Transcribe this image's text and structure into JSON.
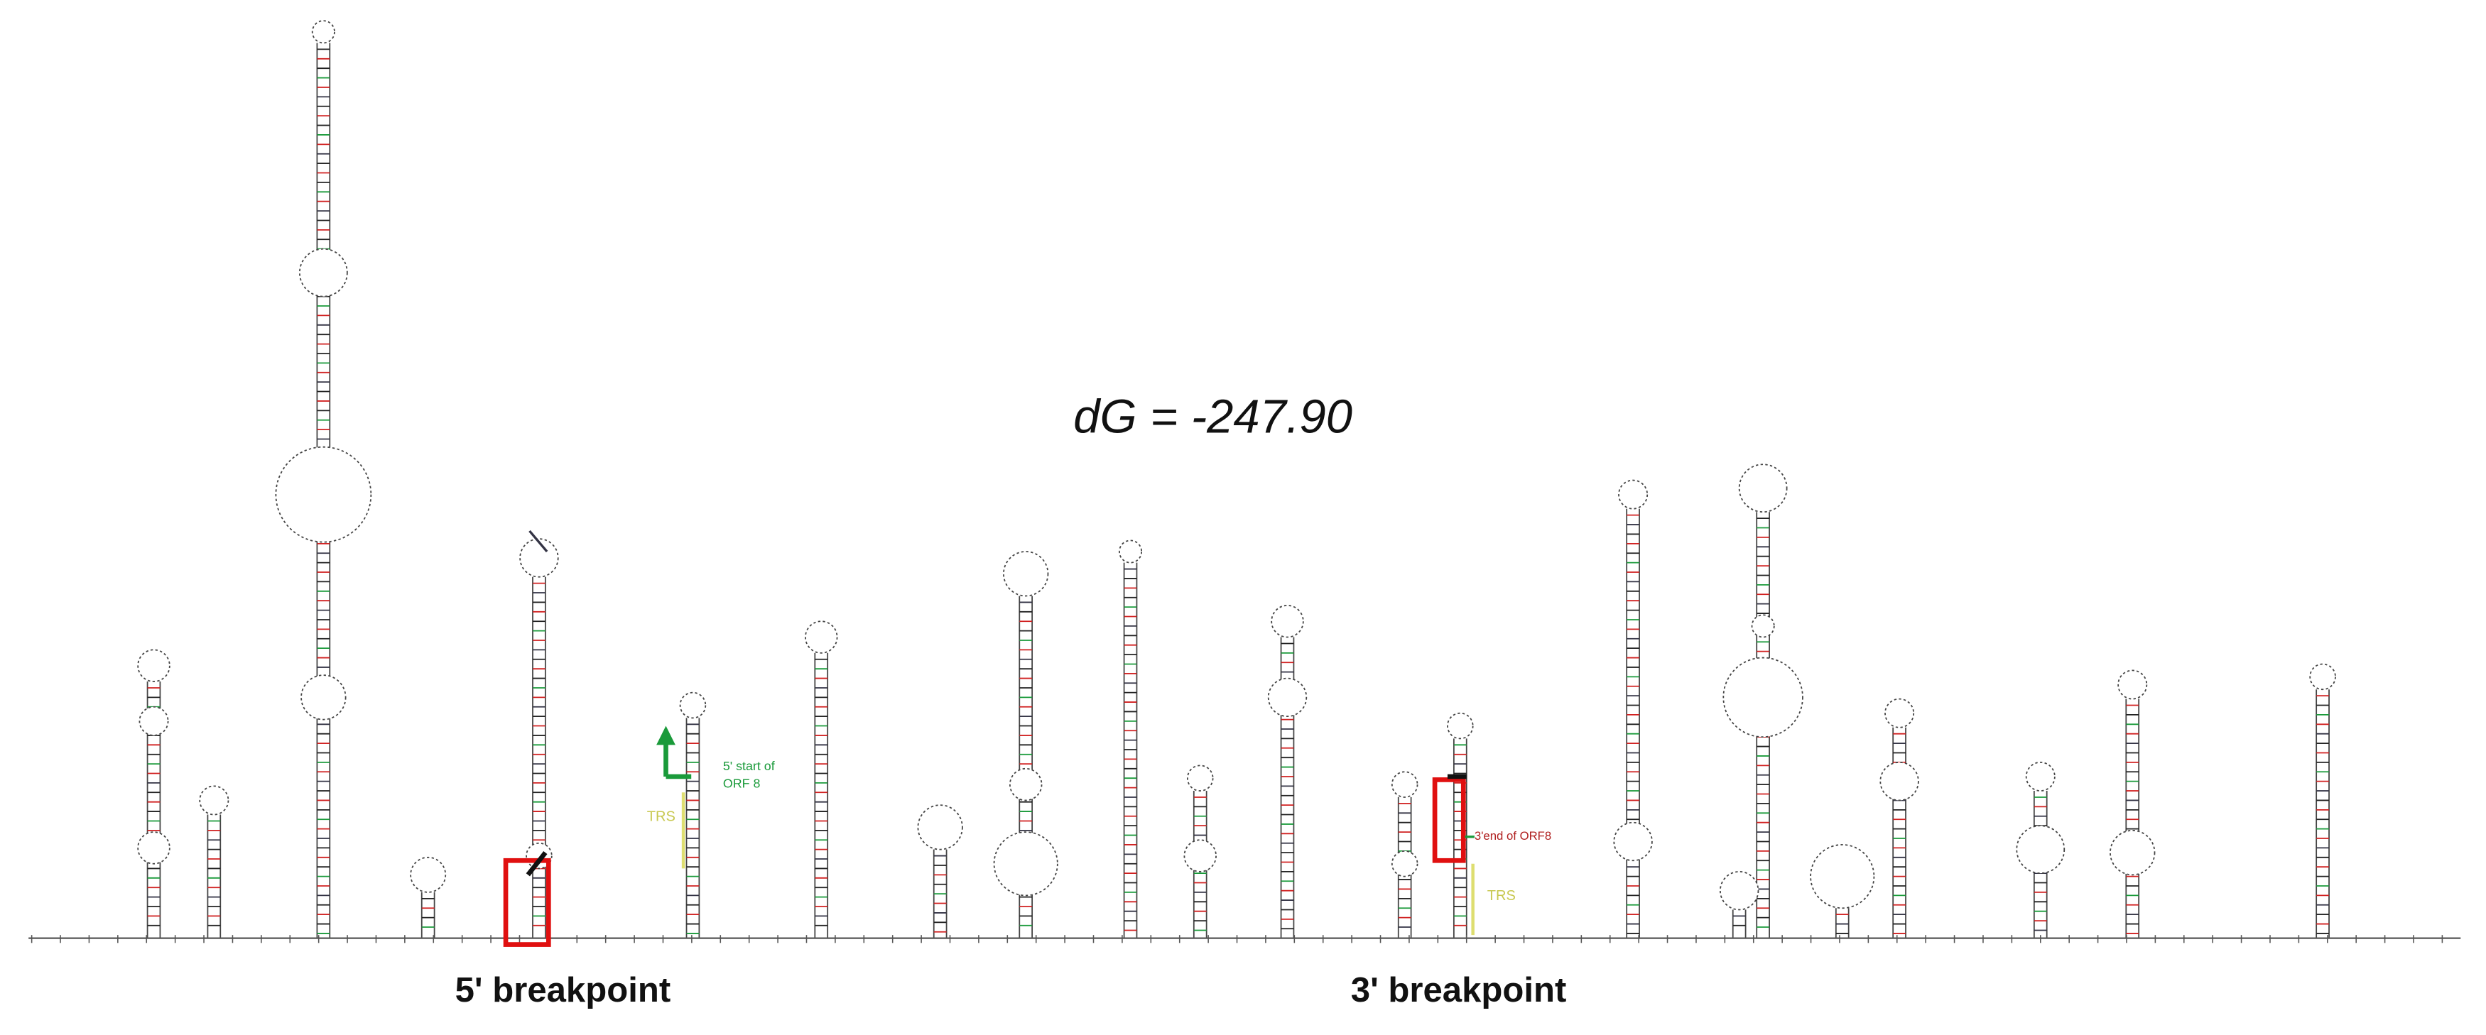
{
  "energy_label": "dG = -247.90",
  "breakpoints": {
    "five_prime": "5' breakpoint",
    "three_prime": "3' breakpoint"
  },
  "annotations": {
    "orf8_start": {
      "line1": "5' start of",
      "line2": "ORF 8"
    },
    "trs_left": "TRS",
    "orf8_end": "3'end of ORF8",
    "trs_right": "TRS"
  }
}
